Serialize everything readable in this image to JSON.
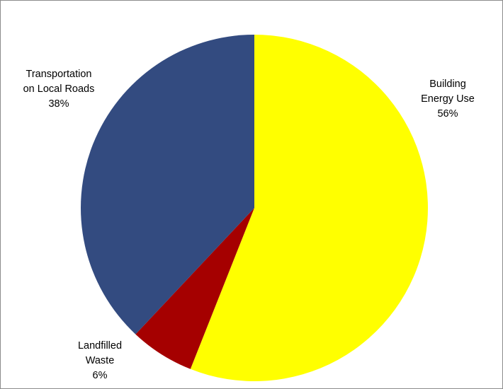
{
  "chart_data": {
    "type": "pie",
    "title": "",
    "slices": [
      {
        "label_lines": [
          "Building",
          "Energy Use"
        ],
        "value": 56,
        "value_label": "56%",
        "color": "#FFFF00"
      },
      {
        "label_lines": [
          "Landfilled",
          "Waste"
        ],
        "value": 6,
        "value_label": "6%",
        "color": "#A50000"
      },
      {
        "label_lines": [
          "Transportation",
          "on Local Roads"
        ],
        "value": 38,
        "value_label": "38%",
        "color": "#334B80"
      }
    ],
    "start_angle": "12 o'clock",
    "direction": "clockwise",
    "legend": "none"
  }
}
